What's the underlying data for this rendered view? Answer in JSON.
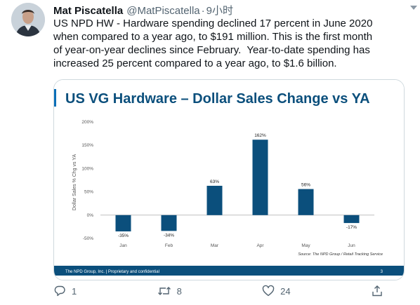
{
  "tweet": {
    "display_name": "Mat Piscatella",
    "handle": "@MatPiscatella",
    "separator": "·",
    "time": "9小时",
    "text": "US NPD HW - Hardware spending declined 17 percent in June 2020\nwhen compared to a year ago, to $191 million. This is the first month\nof year-on-year declines since February.  Year-to-date spending has\nincreased 25 percent compared to a year ago, to $1.6 billion."
  },
  "actions": {
    "reply_count": "1",
    "retweet_count": "8",
    "like_count": "24"
  },
  "colors": {
    "bar": "#0b4f7c",
    "title": "#0b4f7c",
    "footer_bg": "#0b4f7c",
    "accent_bar": "#0b6fb8"
  },
  "chart_data": {
    "type": "bar",
    "title": "US VG Hardware – Dollar Sales Change vs YA",
    "ylabel": "Dollar Sales % Chg vs YA",
    "xlabel": "",
    "categories": [
      "Jan",
      "Feb",
      "Mar",
      "Apr",
      "May",
      "Jun"
    ],
    "values": [
      -35,
      -34,
      63,
      162,
      56,
      -17
    ],
    "value_labels": [
      "-35%",
      "-34%",
      "63%",
      "162%",
      "56%",
      "-17%"
    ],
    "ylim": [
      -50,
      200
    ],
    "yticks": [
      -50,
      0,
      50,
      100,
      150,
      200
    ],
    "ytick_labels": [
      "-50%",
      "0%",
      "50%",
      "100%",
      "150%",
      "200%"
    ],
    "grid": false,
    "source": "Source: The NPD Group / Retail Tracking Service",
    "footer_left": "The NPD Group, Inc.  |  Proprietary and confidential",
    "page_number": "3"
  }
}
